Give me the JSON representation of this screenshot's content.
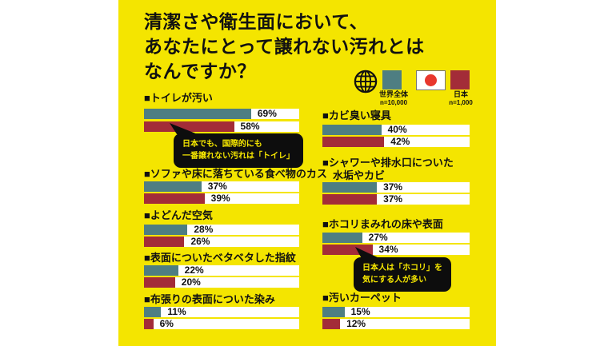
{
  "title": {
    "text": "清潔さや衛生面において、\nあなたにとって譲れない汚れとは\nなんですか？"
  },
  "legend": {
    "world": {
      "label": "世界全体",
      "n": "n=10,000",
      "color": "#4E7E82"
    },
    "japan": {
      "label": "日本",
      "n": "n=1,000",
      "color": "#A32C38",
      "flag_red": "#E8372D"
    }
  },
  "colors": {
    "page_background": "#FFFFFF",
    "panel_background": "#F4E500",
    "bar_track": "#FFFFFF",
    "text": "#111111",
    "callout_background": "#0D0D0D",
    "callout_text": "#F4E500"
  },
  "chart_data": {
    "type": "bar",
    "orientation": "horizontal",
    "unit": "%",
    "xlim": [
      0,
      100
    ],
    "series": [
      {
        "name": "世界全体",
        "n": "n=10,000",
        "color": "#4E7E82"
      },
      {
        "name": "日本",
        "n": "n=1,000",
        "color": "#A32C38"
      }
    ],
    "columns": {
      "left": [
        {
          "label": "■トイレが汚い",
          "world": 69,
          "japan": 58,
          "callout": "日本でも、国際的にも\n一番譲れない汚れは「トイレ」"
        },
        {
          "label": "■ソファや床に落ちている食べ物のカス",
          "world": 37,
          "japan": 39
        },
        {
          "label": "■よどんだ空気",
          "world": 28,
          "japan": 26
        },
        {
          "label": "■表面についたベタベタした指紋",
          "world": 22,
          "japan": 20
        },
        {
          "label": "■布張りの表面についた染み",
          "world": 11,
          "japan": 6
        }
      ],
      "right": [
        {
          "label": "■カビ臭い寝具",
          "world": 40,
          "japan": 42
        },
        {
          "label": "■シャワーや排水口についた\n　水垢やカビ",
          "world": 37,
          "japan": 37
        },
        {
          "label": "■ホコリまみれの床や表面",
          "world": 27,
          "japan": 34,
          "callout": "日本人は「ホコリ」を\n気にする人が多い"
        },
        {
          "label": "■汚いカーペット",
          "world": 15,
          "japan": 12
        }
      ]
    }
  }
}
